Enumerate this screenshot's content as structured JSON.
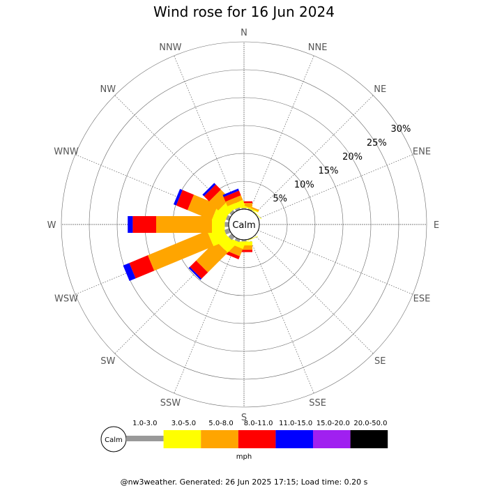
{
  "page": {
    "title": "Wind rose for 16 Jun 2024",
    "footer": "@nw3weather. Generated: 26 Jun 2025 17:15; Load time: 0.20 s"
  },
  "chart_data": {
    "type": "wind-rose",
    "title": "Wind rose for 16 Jun 2024",
    "directions": [
      "N",
      "NNE",
      "NE",
      "ENE",
      "E",
      "ESE",
      "SE",
      "SSE",
      "S",
      "SSW",
      "SW",
      "WSW",
      "W",
      "WNW",
      "NW",
      "NNW"
    ],
    "radial_ticks": [
      "5%",
      "10%",
      "15%",
      "20%",
      "25%",
      "30%"
    ],
    "radial_tick_values": [
      5,
      10,
      15,
      20,
      25,
      30
    ],
    "rmax": 30,
    "calm_label": "Calm",
    "unit": "mph",
    "bins": [
      {
        "label": "1.0-3.0",
        "color": "#999999"
      },
      {
        "label": "3.0-5.0",
        "color": "#ffff00"
      },
      {
        "label": "5.0-8.0",
        "color": "#ffa500"
      },
      {
        "label": "8.0-11.0",
        "color": "#ff0000"
      },
      {
        "label": "11.0-15.0",
        "color": "#0000ff"
      },
      {
        "label": "15.0-20.0",
        "color": "#a020f0"
      },
      {
        "label": "20.0-50.0",
        "color": "#000000"
      }
    ],
    "series": [
      {
        "direction": "N",
        "values": [
          0.2,
          0.3,
          0.6,
          0.3,
          0,
          0,
          0
        ]
      },
      {
        "direction": "NNE",
        "values": [
          0.2,
          0.2,
          0.3,
          0,
          0,
          0,
          0
        ]
      },
      {
        "direction": "NE",
        "values": [
          0.1,
          0.1,
          0,
          0,
          0,
          0,
          0
        ]
      },
      {
        "direction": "ENE",
        "values": [
          0.1,
          0,
          0,
          0,
          0,
          0,
          0
        ]
      },
      {
        "direction": "E",
        "values": [
          0,
          0,
          0,
          0,
          0,
          0,
          0
        ]
      },
      {
        "direction": "ESE",
        "values": [
          0,
          0,
          0,
          0,
          0,
          0,
          0
        ]
      },
      {
        "direction": "SE",
        "values": [
          0,
          0,
          0,
          0,
          0,
          0,
          0
        ]
      },
      {
        "direction": "SSE",
        "values": [
          0.1,
          0.1,
          0,
          0,
          0,
          0,
          0
        ]
      },
      {
        "direction": "S",
        "values": [
          0.3,
          0.7,
          0.8,
          0.4,
          0,
          0,
          0
        ]
      },
      {
        "direction": "SSW",
        "values": [
          0.5,
          0.9,
          1.4,
          0.6,
          0,
          0,
          0
        ]
      },
      {
        "direction": "SW",
        "values": [
          0.8,
          2.1,
          5.0,
          1.6,
          0.3,
          0,
          0
        ]
      },
      {
        "direction": "WSW",
        "values": [
          0.9,
          2.9,
          11.5,
          3.6,
          1.2,
          0,
          0
        ]
      },
      {
        "direction": "W",
        "values": [
          0.7,
          2.3,
          10.0,
          4.2,
          0.9,
          0,
          0
        ]
      },
      {
        "direction": "WNW",
        "values": [
          0.6,
          2.3,
          4.7,
          2.2,
          0.5,
          0,
          0
        ]
      },
      {
        "direction": "NW",
        "values": [
          0.5,
          1.8,
          2.3,
          1.3,
          0.4,
          0,
          0
        ]
      },
      {
        "direction": "NNW",
        "values": [
          0.4,
          1.0,
          0.9,
          0.9,
          0.4,
          0,
          0
        ]
      }
    ]
  }
}
